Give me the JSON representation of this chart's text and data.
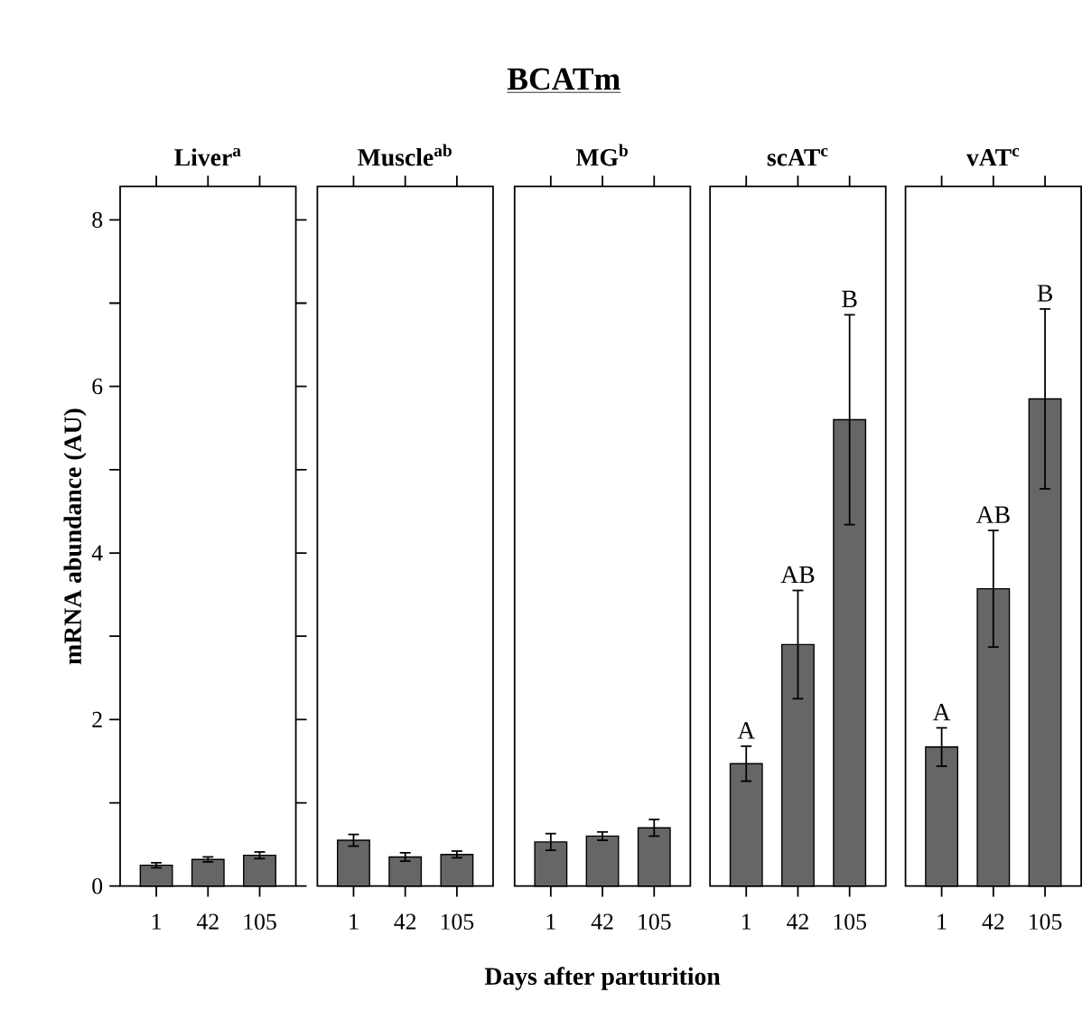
{
  "chart_data": [
    {
      "type": "bar",
      "title": "Liver$^{a}$",
      "ylabel": "mRNA abundance (AU)",
      "categories": [
        "1",
        "42",
        "105"
      ],
      "values": [
        0.25,
        0.32,
        0.37
      ],
      "errors": [
        0.03,
        0.03,
        0.04
      ],
      "color": "#666666",
      "ylim": [
        0,
        8.4
      ],
      "yticks": [
        0,
        {
          "value": 1,
          "label": null
        },
        2,
        {
          "value": 3,
          "label": null
        },
        4,
        {
          "value": 5,
          "label": null
        },
        6,
        {
          "value": 7,
          "label": null
        },
        8
      ]
    },
    {
      "type": "bar",
      "title": "Muscle$^{ab}$",
      "categories": [
        "1",
        "42",
        "105"
      ],
      "values": [
        0.55,
        0.35,
        0.38
      ],
      "errors": [
        0.07,
        0.05,
        0.04
      ],
      "color": "#666666",
      "ylim": [
        0,
        8.4
      ],
      "tick_labels": "x"
    },
    {
      "type": "bar",
      "title": "MG$^{b}$",
      "xlabel": "Days after parturition",
      "annotations": [
        "BCATm"
      ],
      "categories": [
        "1",
        "42",
        "105"
      ],
      "values": [
        0.53,
        0.6,
        0.7
      ],
      "errors": [
        0.1,
        0.05,
        0.1
      ],
      "color": "#666666",
      "ylim": [
        0,
        8.4
      ],
      "tick_labels": "x"
    },
    {
      "type": "bar",
      "title": "scAT$^{c}$",
      "categories": [
        "1",
        "42",
        "105"
      ],
      "values": [
        1.47,
        2.9,
        5.6
      ],
      "errors": [
        0.21,
        0.65,
        1.26
      ],
      "color": "#666666",
      "ylim": [
        0,
        8.4
      ],
      "tick_labels": "x",
      "annotations": [
        {
          "text": "A",
          "x": "1",
          "y": 1.68
        },
        {
          "text": "AB",
          "x": "42",
          "y": 3.55
        },
        {
          "text": "B",
          "x": "105",
          "y": 6.86
        }
      ]
    },
    {
      "type": "bar",
      "title": "vAT$^{c}$",
      "categories": [
        "1",
        "42",
        "105"
      ],
      "values": [
        1.67,
        3.57,
        5.85
      ],
      "errors": [
        0.23,
        0.7,
        1.08
      ],
      "color": "#666666",
      "ylim": [
        0,
        8.4
      ],
      "tick_labels": "x",
      "annotations": [
        {
          "text": "A",
          "x": "1",
          "y": 1.9
        },
        {
          "text": "AB",
          "x": "42",
          "y": 4.27
        },
        {
          "text": "B",
          "x": "105",
          "y": 6.93
        }
      ]
    }
  ]
}
